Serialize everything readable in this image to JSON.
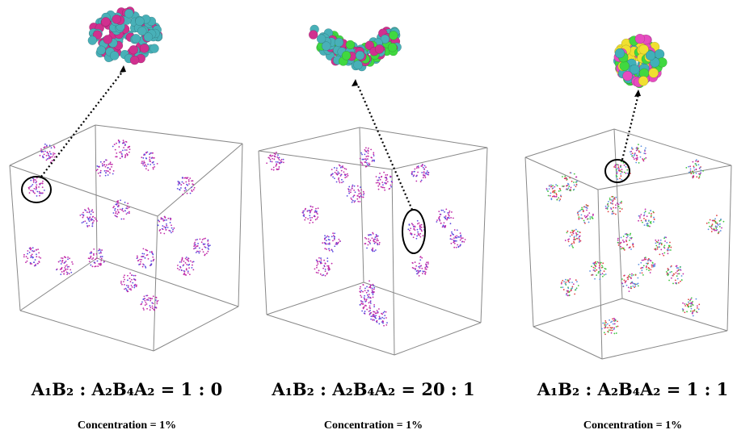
{
  "panels": [
    {
      "title": "A₁B₂ : A₂B₄A₂ = 1 : 0",
      "caption": "Concentration = 1%"
    },
    {
      "title": "A₁B₂ : A₂B₄A₂ = 20 : 1",
      "caption": "Concentration = 1%"
    },
    {
      "title": "A₁B₂ : A₂B₄A₂ = 1 : 1",
      "caption": "Concentration = 1%"
    }
  ]
}
